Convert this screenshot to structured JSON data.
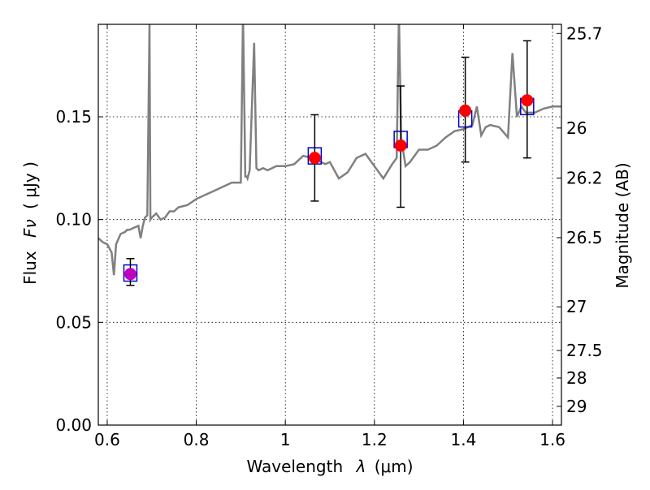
{
  "chart_data": {
    "type": "scatter",
    "title": "",
    "xlabel_main": "Wavelength",
    "xlabel_symbol": "λ",
    "xlabel_unit": "(μm)",
    "ylabel_main": "Flux",
    "ylabel_symbol": "Fν",
    "ylabel_unit": "( μJy )",
    "y2label": "Magnitude (AB)",
    "xlim": [
      0.58,
      1.62
    ],
    "ylim": [
      0.0,
      0.195
    ],
    "grid": true,
    "x_ticks": [
      {
        "value": 0.6,
        "label": "0.6"
      },
      {
        "value": 0.8,
        "label": "0.8"
      },
      {
        "value": 1.0,
        "label": "1"
      },
      {
        "value": 1.2,
        "label": "1.2"
      },
      {
        "value": 1.4,
        "label": "1.4"
      },
      {
        "value": 1.6,
        "label": "1.6"
      }
    ],
    "y_ticks": [
      {
        "value": 0.0,
        "label": "0.00"
      },
      {
        "value": 0.05,
        "label": "0.05"
      },
      {
        "value": 0.1,
        "label": "0.10"
      },
      {
        "value": 0.15,
        "label": "0.15"
      }
    ],
    "y2_ticks": [
      {
        "label": "25.7"
      },
      {
        "label": "26"
      },
      {
        "label": "26.2"
      },
      {
        "label": "26.5"
      },
      {
        "label": "27"
      },
      {
        "label": "27.5"
      },
      {
        "label": "28"
      },
      {
        "label": "29"
      }
    ],
    "series": [
      {
        "kind": "line",
        "color": "#808080",
        "x": [
          0.58,
          0.59,
          0.6,
          0.61,
          0.615,
          0.62,
          0.63,
          0.64,
          0.645,
          0.65,
          0.66,
          0.67,
          0.675,
          0.68,
          0.685,
          0.69,
          0.695,
          0.697,
          0.7,
          0.71,
          0.72,
          0.73,
          0.74,
          0.75,
          0.76,
          0.78,
          0.8,
          0.82,
          0.84,
          0.86,
          0.88,
          0.9,
          0.905,
          0.91,
          0.913,
          0.915,
          0.92,
          0.93,
          0.935,
          0.94,
          0.95,
          0.96,
          0.98,
          1.0,
          1.02,
          1.04,
          1.06,
          1.08,
          1.09,
          1.1,
          1.12,
          1.14,
          1.16,
          1.18,
          1.2,
          1.22,
          1.24,
          1.25,
          1.255,
          1.26,
          1.265,
          1.27,
          1.28,
          1.3,
          1.32,
          1.34,
          1.36,
          1.38,
          1.4,
          1.42,
          1.43,
          1.44,
          1.45,
          1.46,
          1.48,
          1.5,
          1.51,
          1.52,
          1.53,
          1.54,
          1.56,
          1.58,
          1.6,
          1.62
        ],
        "y": [
          0.091,
          0.089,
          0.088,
          0.084,
          0.073,
          0.088,
          0.093,
          0.094,
          0.095,
          0.095,
          0.096,
          0.097,
          0.091,
          0.097,
          0.101,
          0.102,
          0.195,
          0.1,
          0.101,
          0.103,
          0.1,
          0.101,
          0.104,
          0.104,
          0.106,
          0.107,
          0.11,
          0.112,
          0.114,
          0.116,
          0.118,
          0.118,
          0.2,
          0.121,
          0.121,
          0.12,
          0.124,
          0.186,
          0.125,
          0.124,
          0.125,
          0.124,
          0.126,
          0.126,
          0.127,
          0.131,
          0.13,
          0.128,
          0.127,
          0.128,
          0.12,
          0.123,
          0.13,
          0.132,
          0.126,
          0.12,
          0.127,
          0.13,
          0.2,
          0.14,
          0.133,
          0.126,
          0.128,
          0.134,
          0.134,
          0.136,
          0.14,
          0.143,
          0.144,
          0.146,
          0.155,
          0.141,
          0.145,
          0.146,
          0.145,
          0.14,
          0.181,
          0.15,
          0.155,
          0.152,
          0.152,
          0.154,
          0.155,
          0.155
        ]
      },
      {
        "kind": "model_boxes",
        "color": "#0000cc",
        "x": [
          0.652,
          1.066,
          1.259,
          1.404,
          1.543
        ],
        "y": [
          0.074,
          0.131,
          0.139,
          0.149,
          0.155
        ]
      },
      {
        "kind": "points_with_errors",
        "x": [
          0.652,
          1.066,
          1.259,
          1.404,
          1.543
        ],
        "y": [
          0.0735,
          0.13,
          0.136,
          0.153,
          0.158
        ],
        "yerr_low": [
          0.0055,
          0.021,
          0.03,
          0.025,
          0.028
        ],
        "yerr_high": [
          0.0075,
          0.021,
          0.029,
          0.026,
          0.029
        ],
        "colors": [
          "#bf00bf",
          "#ff0000",
          "#ff0000",
          "#ff0000",
          "#ff0000"
        ]
      }
    ]
  }
}
